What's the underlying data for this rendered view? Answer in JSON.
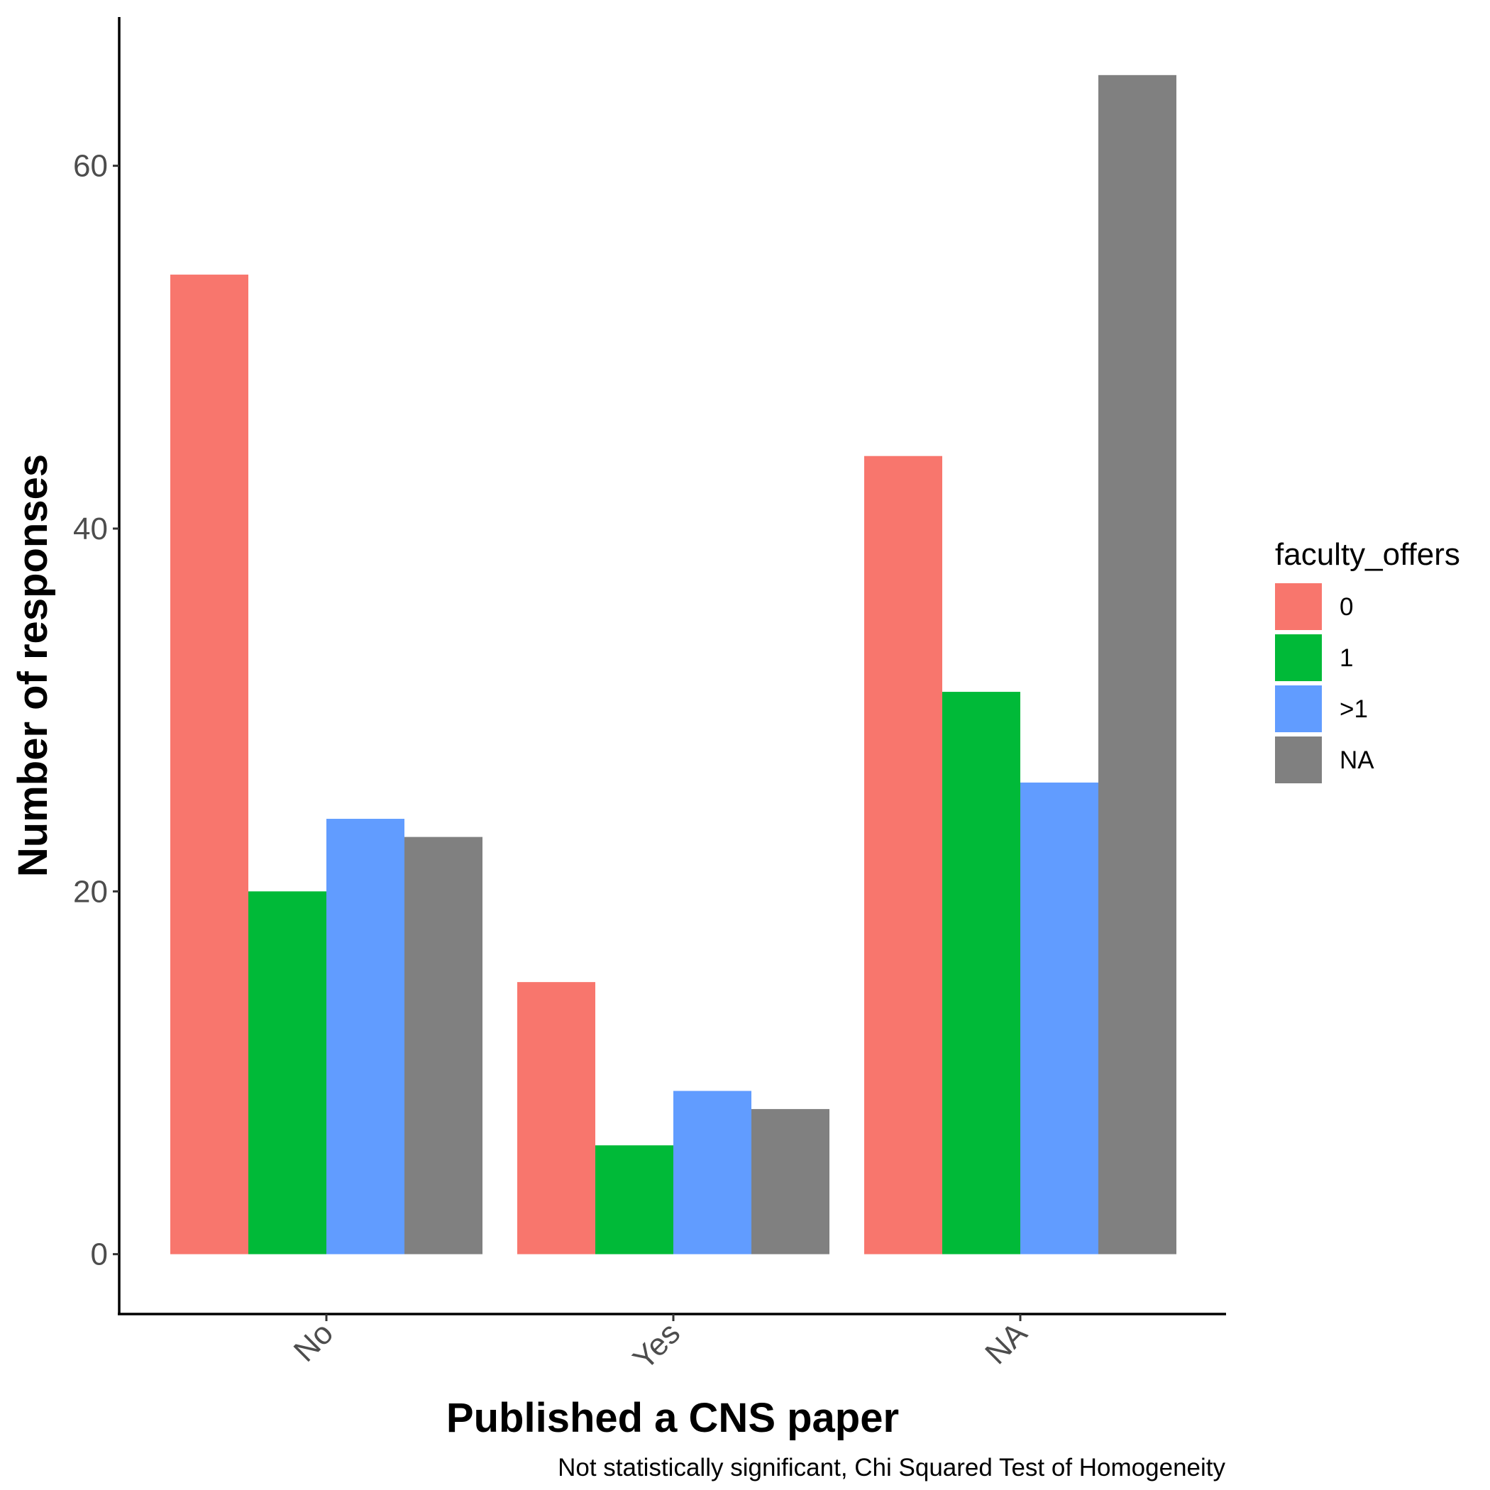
{
  "chart_data": {
    "type": "bar",
    "title": "",
    "xlabel": "Published a CNS paper",
    "ylabel": "Number of responses",
    "caption": "Not statistically significant, Chi Squared Test of Homogeneity",
    "categories": [
      "No",
      "Yes",
      "NA"
    ],
    "series": [
      {
        "name": "0",
        "color": "#F8766D",
        "values": [
          54,
          15,
          44
        ]
      },
      {
        "name": "1",
        "color": "#00BA38",
        "values": [
          20,
          6,
          31
        ]
      },
      {
        "name": ">1",
        "color": "#619CFF",
        "values": [
          24,
          9,
          26
        ]
      },
      {
        "name": "NA",
        "color": "#808080",
        "values": [
          23,
          8,
          65
        ]
      }
    ],
    "ylim": [
      -3.3,
      68.2
    ],
    "yticks": [
      0,
      20,
      40,
      60
    ],
    "ytick_labels": [
      "0",
      "20",
      "40",
      "60"
    ],
    "legend": {
      "title": "faculty_offers",
      "position": "right"
    },
    "grid": false,
    "x_tick_rotation": 45
  }
}
